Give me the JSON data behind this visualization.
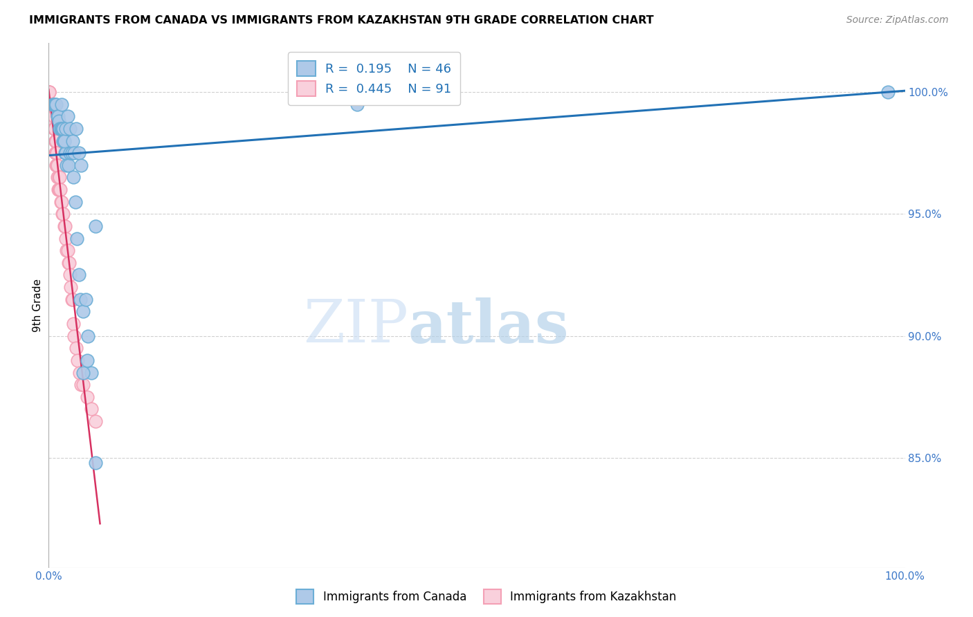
{
  "title": "IMMIGRANTS FROM CANADA VS IMMIGRANTS FROM KAZAKHSTAN 9TH GRADE CORRELATION CHART",
  "source": "Source: ZipAtlas.com",
  "ylabel": "9th Grade",
  "y_ticks": [
    85.0,
    90.0,
    95.0,
    100.0
  ],
  "y_tick_labels": [
    "85.0%",
    "90.0%",
    "95.0%",
    "100.0%"
  ],
  "x_range": [
    0.0,
    100.0
  ],
  "y_range": [
    80.5,
    102.0
  ],
  "canada_R": 0.195,
  "canada_N": 46,
  "kazakhstan_R": 0.445,
  "kazakhstan_N": 91,
  "canada_color": "#6baed6",
  "canada_fill": "#aec9e8",
  "kazakhstan_color": "#f4a0b5",
  "kazakhstan_fill": "#f9d0dc",
  "trendline_color": "#2171b5",
  "kazakhstan_trendline_color": "#d63060",
  "watermark_zip": "ZIP",
  "watermark_atlas": "atlas",
  "canada_x": [
    0.5,
    0.6,
    0.7,
    0.8,
    0.9,
    1.0,
    1.1,
    1.2,
    1.3,
    1.4,
    1.5,
    1.6,
    1.7,
    1.8,
    1.9,
    2.0,
    2.1,
    2.3,
    2.5,
    2.7,
    2.9,
    3.1,
    3.3,
    3.5,
    3.7,
    4.0,
    4.3,
    4.6,
    5.0,
    5.5,
    36.0,
    98.0
  ],
  "canada_y": [
    99.5,
    99.5,
    99.5,
    99.5,
    99.5,
    99.0,
    99.0,
    98.8,
    98.5,
    98.5,
    98.5,
    98.5,
    98.0,
    98.0,
    97.5,
    97.5,
    97.0,
    97.0,
    97.5,
    97.5,
    96.5,
    95.5,
    94.0,
    92.5,
    91.5,
    91.0,
    91.5,
    90.0,
    88.5,
    84.8,
    99.5,
    100.0
  ],
  "canada_x_extra": [
    1.5,
    1.7,
    1.8,
    2.0,
    2.2,
    2.5,
    2.8,
    3.0,
    3.2,
    3.5,
    3.8,
    4.0,
    4.5,
    5.5
  ],
  "canada_y_extra": [
    99.5,
    98.5,
    98.0,
    98.5,
    99.0,
    98.5,
    98.0,
    97.5,
    98.5,
    97.5,
    97.0,
    88.5,
    89.0,
    94.5
  ],
  "kazakhstan_x": [
    0.05,
    0.07,
    0.08,
    0.09,
    0.1,
    0.1,
    0.12,
    0.13,
    0.15,
    0.15,
    0.16,
    0.17,
    0.18,
    0.2,
    0.2,
    0.22,
    0.25,
    0.27,
    0.3,
    0.32,
    0.35,
    0.38,
    0.4,
    0.43,
    0.45,
    0.48,
    0.5,
    0.52,
    0.55,
    0.58,
    0.6,
    0.62,
    0.65,
    0.68,
    0.7,
    0.72,
    0.75,
    0.78,
    0.8,
    0.83,
    0.85,
    0.88,
    0.9,
    0.92,
    0.95,
    0.98,
    1.0,
    1.05,
    1.1,
    1.15,
    1.2,
    1.25,
    1.3,
    1.35,
    1.4,
    1.5,
    1.6,
    1.7,
    1.8,
    1.9,
    2.0,
    2.1,
    2.2,
    2.3,
    2.4,
    2.5,
    2.6,
    2.7,
    2.8,
    2.9,
    3.0,
    3.2,
    3.4,
    3.6,
    3.8,
    4.0,
    4.5,
    5.0,
    5.5
  ],
  "kazakhstan_y": [
    100.0,
    99.5,
    100.0,
    100.0,
    99.5,
    99.5,
    99.5,
    99.5,
    99.5,
    99.5,
    99.5,
    99.5,
    99.5,
    99.5,
    99.5,
    99.0,
    99.5,
    99.5,
    99.5,
    99.5,
    99.5,
    99.5,
    99.5,
    99.5,
    99.5,
    99.0,
    99.0,
    99.0,
    99.0,
    99.0,
    98.8,
    99.0,
    98.5,
    98.5,
    98.5,
    98.5,
    98.0,
    98.0,
    97.5,
    98.0,
    97.5,
    97.5,
    97.0,
    97.5,
    97.5,
    97.0,
    96.5,
    97.0,
    96.0,
    96.5,
    96.0,
    96.5,
    96.0,
    96.0,
    95.5,
    95.5,
    95.0,
    95.0,
    94.5,
    94.5,
    94.0,
    93.5,
    93.5,
    93.0,
    93.0,
    92.5,
    92.0,
    91.5,
    91.5,
    90.5,
    90.0,
    89.5,
    89.0,
    88.5,
    88.0,
    88.0,
    87.5,
    87.0,
    86.5
  ],
  "kaz_trend_x": [
    0.05,
    5.5
  ],
  "kaz_trend_y_start": 99.8,
  "kaz_trend_y_end": 86.0,
  "can_trend_x": [
    0.0,
    100.0
  ],
  "can_trend_y_start": 97.5,
  "can_trend_y_end": 100.0
}
